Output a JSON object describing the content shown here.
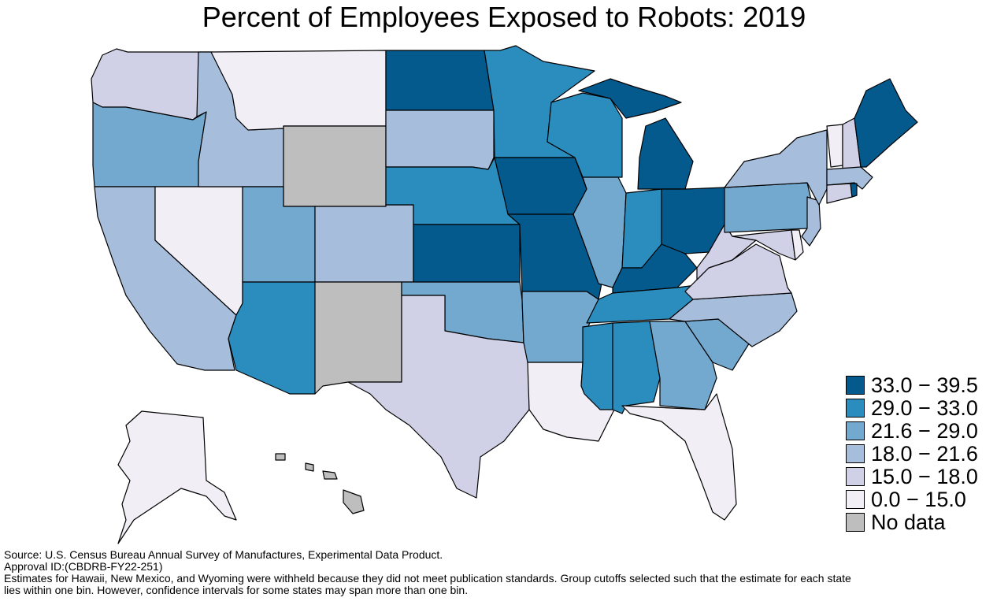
{
  "title": "Percent of Employees Exposed to Robots: 2019",
  "colors": {
    "b1": "#045a8d",
    "b2": "#2b8cbe",
    "b3": "#74a9cf",
    "b4": "#a6bddb",
    "b5": "#d0d1e6",
    "b6": "#f1eef6",
    "nodata": "#bebebe"
  },
  "legend": [
    {
      "label": "33.0 − 39.5",
      "color_key": "b1"
    },
    {
      "label": "29.0 − 33.0",
      "color_key": "b2"
    },
    {
      "label": "21.6 − 29.0",
      "color_key": "b3"
    },
    {
      "label": "18.0 − 21.6",
      "color_key": "b4"
    },
    {
      "label": "15.0 − 18.0",
      "color_key": "b5"
    },
    {
      "label": "0.0 − 15.0",
      "color_key": "b6"
    },
    {
      "label": "No data",
      "color_key": "nodata"
    }
  ],
  "states": {
    "WA": "b5",
    "OR": "b3",
    "CA": "b4",
    "NV": "b6",
    "ID": "b4",
    "MT": "b6",
    "WY": "nodata",
    "UT": "b3",
    "AZ": "b2",
    "CO": "b4",
    "NM": "nodata",
    "ND": "b1",
    "SD": "b4",
    "NE": "b2",
    "KS": "b1",
    "OK": "b3",
    "TX": "b5",
    "MN": "b2",
    "IA": "b1",
    "MO": "b1",
    "AR": "b3",
    "LA": "b6",
    "WI": "b2",
    "IL": "b3",
    "MI": "b1",
    "IN": "b2",
    "OH": "b1",
    "KY": "b1",
    "TN": "b2",
    "MS": "b2",
    "AL": "b2",
    "GA": "b3",
    "FL": "b6",
    "SC": "b3",
    "NC": "b4",
    "VA": "b5",
    "WV": "b5",
    "PA": "b3",
    "NY": "b4",
    "VT": "b6",
    "NH": "b5",
    "ME": "b1",
    "MA": "b4",
    "CT": "b5",
    "RI": "b1",
    "NJ": "b4",
    "DE": "b6",
    "MD": "b5",
    "AK": "b6",
    "HI": "nodata"
  },
  "notes": {
    "source": "Source: U.S. Census Bureau Annual Survey of Manufactures, Experimental Data Product.",
    "approval": "Approval ID:(CBDRB-FY22-251)",
    "line1": "Estimates for Hawaii, New Mexico, and Wyoming were withheld because they did not meet publication standards. Group cutoffs selected such that the estimate for each state",
    "line2": "lies within one bin. However, confidence intervals for some states may span more than one bin."
  }
}
